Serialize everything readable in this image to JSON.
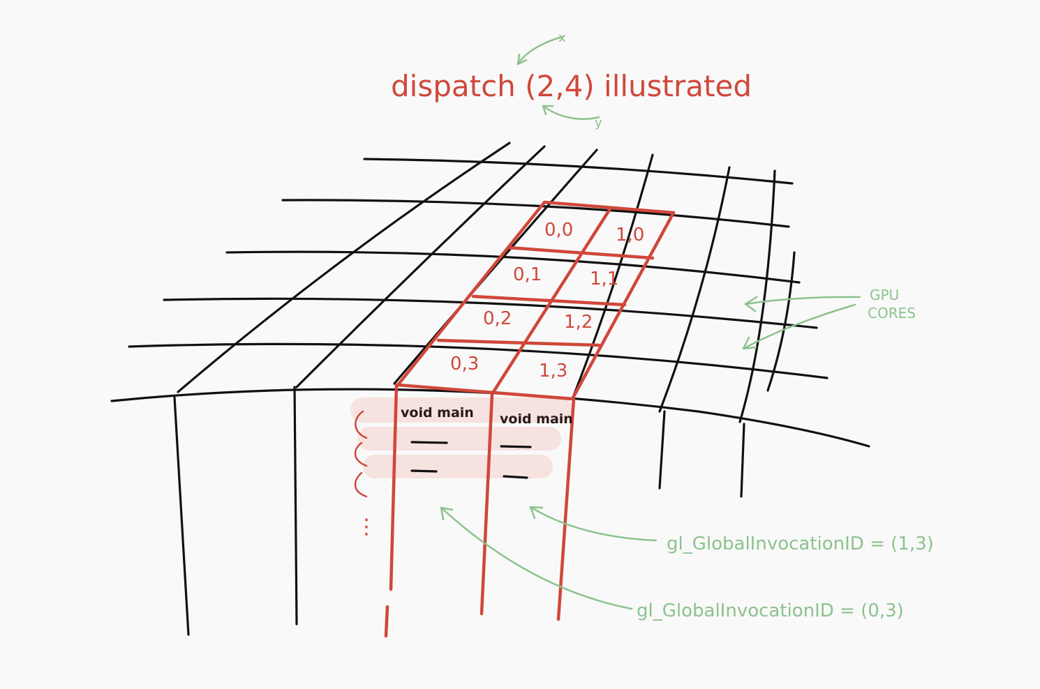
{
  "title": "dispatch (2,4) illustrated",
  "axis_x": "x",
  "axis_y": "y",
  "cells": [
    "0,0",
    "1,0",
    "0,1",
    "1,1",
    "0,2",
    "1,2",
    "0,3",
    "1,3"
  ],
  "shader_labels": [
    "void main",
    "void main"
  ],
  "gpu_cores_label": [
    "GPU",
    "CORES"
  ],
  "invocation_labels": [
    "gl_GlobalInvocationID = (1,3)",
    "gl_GlobalInvocationID = (0,3)"
  ],
  "ellipsis": "⋮",
  "colors": {
    "red": "#d0473a",
    "green": "#8cc28e",
    "ink": "#111111",
    "highlight": "#f6e2df",
    "background": "#f9f9f9"
  }
}
